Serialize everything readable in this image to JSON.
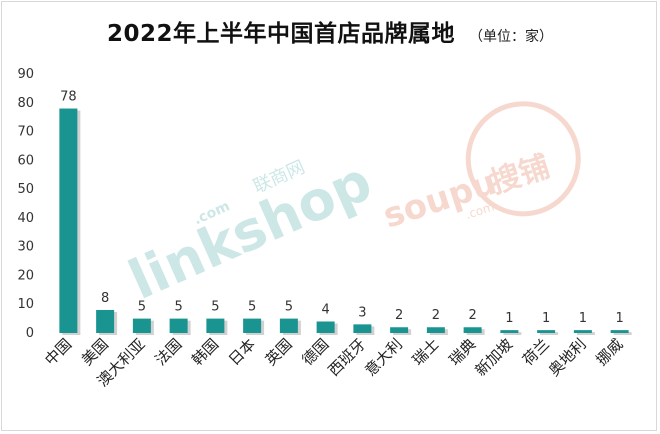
{
  "chart_data": {
    "type": "bar",
    "title": "2022年上半年中国首店品牌属地",
    "subtitle": "（单位：家）",
    "categories": [
      "中国",
      "美国",
      "澳大利亚",
      "法国",
      "韩国",
      "日本",
      "英国",
      "德国",
      "西班牙",
      "意大利",
      "瑞士",
      "瑞典",
      "新加坡",
      "荷兰",
      "奥地利",
      "挪威"
    ],
    "values": [
      78,
      8,
      5,
      5,
      5,
      5,
      5,
      4,
      3,
      2,
      2,
      2,
      1,
      1,
      1,
      1
    ],
    "yticks": [
      "0",
      "10",
      "20",
      "30",
      "40",
      "50",
      "60",
      "70",
      "80",
      "90"
    ],
    "ylim": [
      0,
      90
    ],
    "bar_color": "#1a9490",
    "grid": false
  },
  "watermarks": {
    "linkshop": "linkshop",
    "linkshop_cn": "联商网",
    "linkshop_com": ".com",
    "soupu": "soupu",
    "soupu_cn": "搜铺",
    "soupu_com": ".com"
  }
}
